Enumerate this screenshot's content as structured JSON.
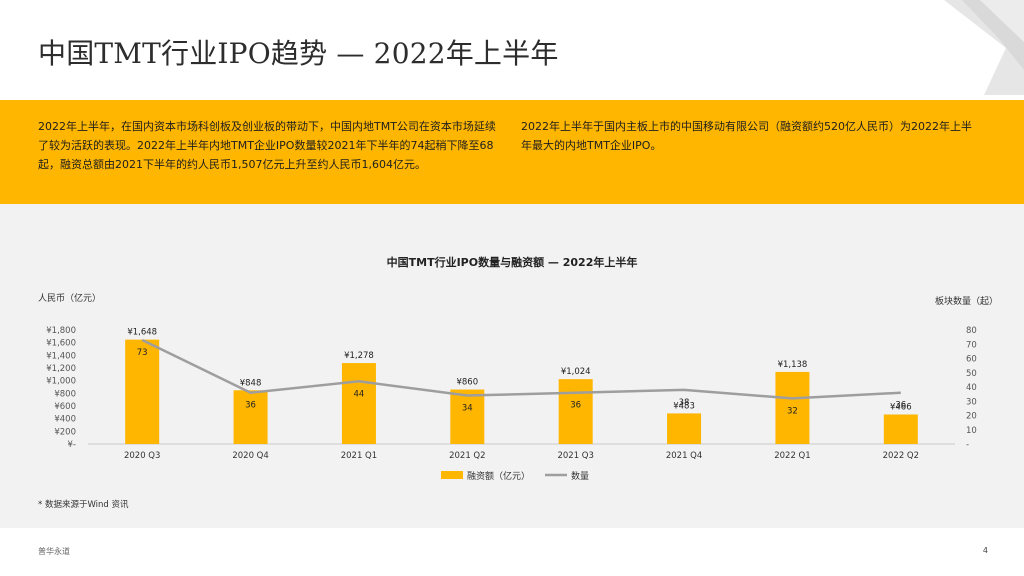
{
  "slide": {
    "title": "中国TMT行业IPO趋势 — 2022年上半年",
    "footer_brand": "普华永道",
    "page_number": "4"
  },
  "banner": {
    "left_text": "2022年上半年，在国内资本市场科创板及创业板的带动下，中国内地TMT公司在资本市场延续了较为活跃的表现。2022年上半年内地TMT企业IPO数量较2021年下半年的74起稍下降至68起，融资总额由2021下半年的约人民币1,507亿元上升至约人民币1,604亿元。",
    "right_text": "2022年上半年于国内主板上市的中国移动有限公司（融资额约520亿人民币）为2022年上半年最大的内地TMT企业IPO。"
  },
  "colors": {
    "accent": "#FFB600",
    "line": "#9e9e9e",
    "panel": "#f2f2f2"
  },
  "chart_data": {
    "type": "bar",
    "title": "中国TMT行业IPO数量与融资额 — 2022年上半年",
    "ylabel_left": "人民币（亿元）",
    "ylabel_right": "板块数量（起）",
    "categories": [
      "2020 Q3",
      "2020 Q4",
      "2021 Q1",
      "2021 Q2",
      "2021 Q3",
      "2021 Q4",
      "2022 Q1",
      "2022 Q2"
    ],
    "series": [
      {
        "name": "融资额（亿元）",
        "type": "bar",
        "axis": "left",
        "values": [
          1648,
          848,
          1278,
          860,
          1024,
          483,
          1138,
          466
        ],
        "labels": [
          "¥1,648",
          "¥848",
          "¥1,278",
          "¥860",
          "¥1,024",
          "¥483",
          "¥1,138",
          "¥466"
        ]
      },
      {
        "name": "数量",
        "type": "line",
        "axis": "right",
        "values": [
          73,
          36,
          44,
          34,
          36,
          38,
          32,
          36
        ],
        "labels": [
          "73",
          "36",
          "44",
          "34",
          "36",
          "38",
          "32",
          "36"
        ]
      }
    ],
    "ylim_left": [
      0,
      1800
    ],
    "yticks_left": [
      "¥-",
      "¥200",
      "¥400",
      "¥600",
      "¥800",
      "¥1,000",
      "¥1,200",
      "¥1,400",
      "¥1,600",
      "¥1,800"
    ],
    "ylim_right": [
      0,
      80
    ],
    "yticks_right": [
      "-",
      "10",
      "20",
      "30",
      "40",
      "50",
      "60",
      "70",
      "80"
    ],
    "legend": [
      "融资额（亿元）",
      "数量"
    ],
    "legend_position": "bottom",
    "source_note": "* 数据来源于Wind 资讯"
  }
}
